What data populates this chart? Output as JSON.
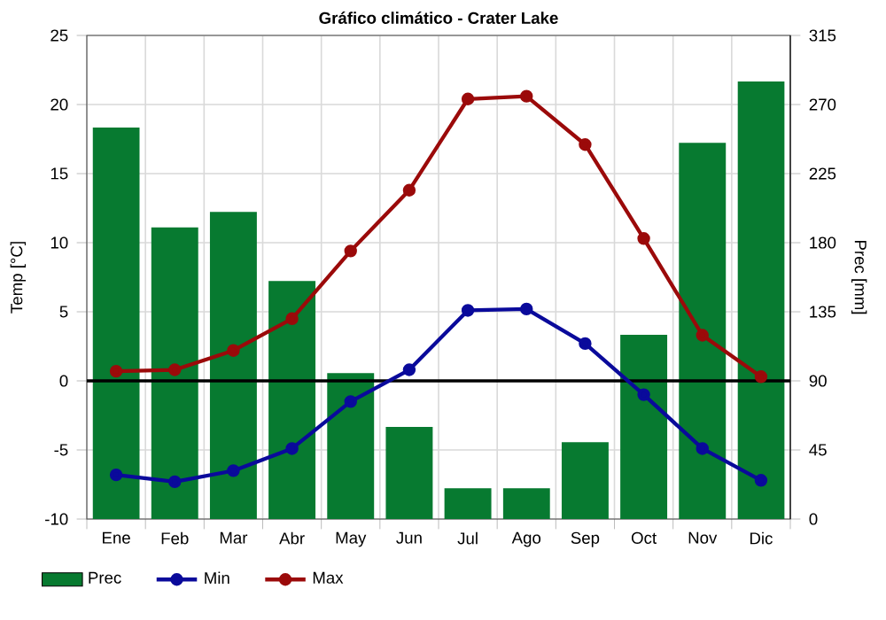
{
  "chart_data": {
    "type": "line",
    "title": "Gráfico climático - Crater Lake",
    "ylabel": "Temp [°C]",
    "y2label": "Prec [mm]",
    "categories": [
      "Ene",
      "Feb",
      "Mar",
      "Abr",
      "May",
      "Jun",
      "Jul",
      "Ago",
      "Sep",
      "Oct",
      "Nov",
      "Dic"
    ],
    "ylim": [
      -10,
      25
    ],
    "yticks": [
      -10,
      -5,
      0,
      5,
      10,
      15,
      20,
      25
    ],
    "y2lim": [
      0,
      315
    ],
    "y2ticks": [
      0,
      45,
      90,
      135,
      180,
      225,
      270,
      315
    ],
    "grid": true,
    "legend": "bottom",
    "marker": "circle",
    "line_style": "solid",
    "ref_lines": [
      {
        "axis": "y",
        "value": 0,
        "color": "#000000"
      }
    ],
    "series": [
      {
        "name": "Prec",
        "type": "bar",
        "axis": "y2",
        "color": "#077a30",
        "values": [
          255,
          190,
          200,
          155,
          95,
          60,
          20,
          20,
          50,
          120,
          245,
          285
        ]
      },
      {
        "name": "Min",
        "color": "#0a0a9b",
        "values": [
          -6.8,
          -7.3,
          -6.5,
          -4.9,
          -1.5,
          0.8,
          5.1,
          5.2,
          2.7,
          -1.0,
          -4.9,
          -7.2
        ]
      },
      {
        "name": "Max",
        "color": "#9b0a0a",
        "values": [
          0.7,
          0.8,
          2.2,
          4.5,
          9.4,
          13.8,
          20.4,
          20.6,
          17.1,
          10.3,
          3.3,
          0.3
        ]
      }
    ]
  }
}
